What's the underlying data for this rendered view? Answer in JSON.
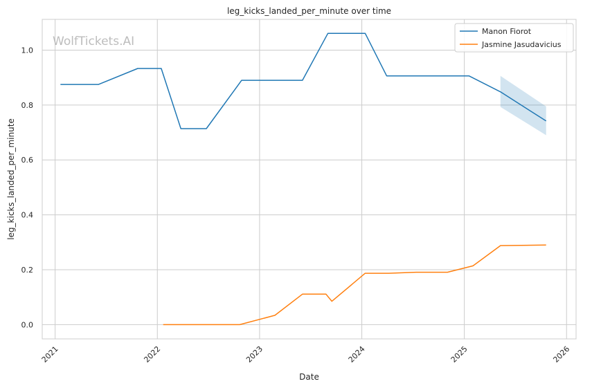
{
  "watermark": "WolfTickets.AI",
  "chart_data": {
    "type": "line",
    "title": "leg_kicks_landed_per_minute over time",
    "xlabel": "Date",
    "ylabel": "leg_kicks_landed_per_minute",
    "xlim": [
      "2020-11-16",
      "2026-02-04"
    ],
    "ylim": [
      -0.052,
      1.112
    ],
    "x_ticks": [
      "2021",
      "2022",
      "2023",
      "2024",
      "2025",
      "2026"
    ],
    "y_ticks": [
      "0.0",
      "0.2",
      "0.4",
      "0.6",
      "0.8",
      "1.0"
    ],
    "grid": true,
    "legend_position": "top-right",
    "series": [
      {
        "name": "Manon Fiorot",
        "color": "#1f77b4",
        "points": [
          [
            "2021-01-20",
            0.875
          ],
          [
            "2021-06-05",
            0.875
          ],
          [
            "2021-10-23",
            0.933
          ],
          [
            "2022-01-15",
            0.933
          ],
          [
            "2022-03-26",
            0.714
          ],
          [
            "2022-06-25",
            0.714
          ],
          [
            "2022-10-29",
            0.89
          ],
          [
            "2023-06-03",
            0.89
          ],
          [
            "2023-09-02",
            1.061
          ],
          [
            "2024-01-13",
            1.061
          ],
          [
            "2024-03-30",
            0.906
          ],
          [
            "2025-01-18",
            0.906
          ],
          [
            "2025-05-10",
            0.848
          ],
          [
            "2025-10-20",
            0.742
          ]
        ],
        "band": [
          [
            "2025-05-10",
            0.793,
            0.906
          ],
          [
            "2025-10-20",
            0.69,
            0.795
          ]
        ]
      },
      {
        "name": "Jasmine Jasudavicius",
        "color": "#ff7f0e",
        "points": [
          [
            "2022-01-22",
            0.0
          ],
          [
            "2022-10-22",
            0.0
          ],
          [
            "2023-02-25",
            0.034
          ],
          [
            "2023-06-03",
            0.111
          ],
          [
            "2023-08-26",
            0.111
          ],
          [
            "2023-09-16",
            0.085
          ],
          [
            "2024-01-13",
            0.187
          ],
          [
            "2024-04-06",
            0.187
          ],
          [
            "2024-07-13",
            0.191
          ],
          [
            "2024-11-02",
            0.191
          ],
          [
            "2025-02-01",
            0.214
          ],
          [
            "2025-05-10",
            0.288
          ],
          [
            "2025-10-20",
            0.29
          ]
        ]
      }
    ]
  }
}
